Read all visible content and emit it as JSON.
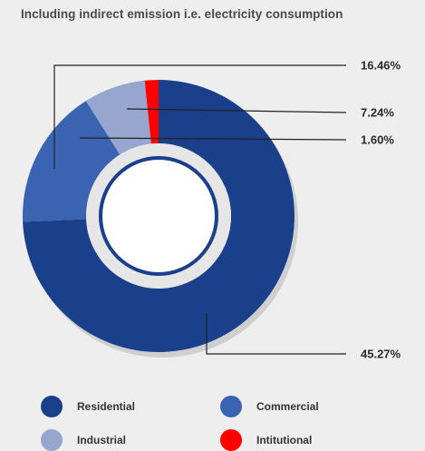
{
  "title": "Including indirect emission i.e. electricity consumption",
  "chart_data": {
    "type": "pie",
    "title": "Including indirect emission i.e. electricity consumption",
    "slices": [
      {
        "name": "Residential",
        "value": 73.2,
        "color": "#1a3f8b",
        "label": ""
      },
      {
        "name": "Commercial",
        "value": 16.46,
        "color": "#3a63b1",
        "label": "16.46%"
      },
      {
        "name": "Industrial",
        "value": 7.24,
        "color": "#97a6ce",
        "label": "7.24%"
      },
      {
        "name": "Intitutional",
        "value": 1.6,
        "color": "#ff0000",
        "label": "1.60%"
      }
    ],
    "extra_labels": [
      {
        "text": "45.27%"
      }
    ],
    "legend": "bottom"
  },
  "legend": [
    {
      "label": "Residential",
      "color": "#1a3f8b"
    },
    {
      "label": "Commercial",
      "color": "#3a63b1"
    },
    {
      "label": "Industrial",
      "color": "#97a6ce"
    },
    {
      "label": "Intitutional",
      "color": "#ff0000"
    }
  ]
}
